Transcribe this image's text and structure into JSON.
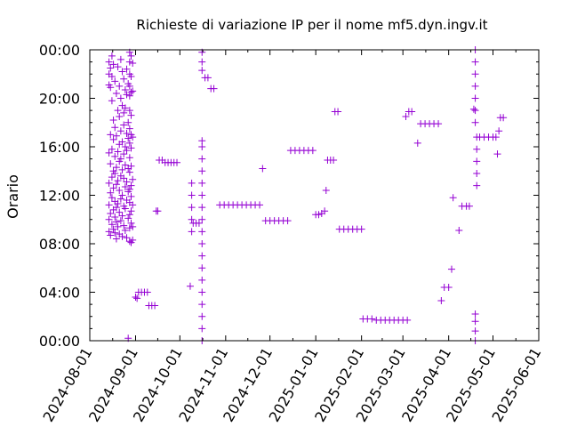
{
  "chart_data": {
    "type": "scatter",
    "title": "Richieste di variazione IP per il nome mf5.dyn.ingv.it",
    "xlabel": "",
    "ylabel": "Orario",
    "x_range": [
      "2024-08-01",
      "2025-06-01"
    ],
    "y_range_hours": [
      0,
      24
    ],
    "x_ticks": [
      "2024-08-01",
      "2024-09-01",
      "2024-10-01",
      "2024-11-01",
      "2024-12-01",
      "2025-01-01",
      "2025-02-01",
      "2025-03-01",
      "2025-04-01",
      "2025-05-01",
      "2025-06-01"
    ],
    "y_ticks": [
      "00:00",
      "04:00",
      "08:00",
      "12:00",
      "16:00",
      "20:00",
      "00:00"
    ],
    "y_tick_hours": [
      0,
      4,
      8,
      12,
      16,
      20,
      24
    ],
    "marker": "plus",
    "color": "#9400d3",
    "grid": false,
    "legend": "none",
    "points": [
      [
        "2024-08-14",
        23.0
      ],
      [
        "2024-08-14",
        22.0
      ],
      [
        "2024-08-14",
        21.1
      ],
      [
        "2024-08-14",
        15.5
      ],
      [
        "2024-08-14",
        13.0
      ],
      [
        "2024-08-14",
        11.2
      ],
      [
        "2024-08-14",
        10.0
      ],
      [
        "2024-08-14",
        9.0
      ],
      [
        "2024-08-15",
        22.5
      ],
      [
        "2024-08-15",
        20.9
      ],
      [
        "2024-08-15",
        17.0
      ],
      [
        "2024-08-15",
        14.6
      ],
      [
        "2024-08-15",
        12.2
      ],
      [
        "2024-08-15",
        10.5
      ],
      [
        "2024-08-15",
        8.7
      ],
      [
        "2024-08-16",
        21.8
      ],
      [
        "2024-08-16",
        19.8
      ],
      [
        "2024-08-16",
        15.8
      ],
      [
        "2024-08-16",
        13.5
      ],
      [
        "2024-08-16",
        11.8
      ],
      [
        "2024-08-16",
        9.6
      ],
      [
        "2024-08-16",
        23.5
      ],
      [
        "2024-08-17",
        22.8
      ],
      [
        "2024-08-17",
        18.2
      ],
      [
        "2024-08-17",
        16.6
      ],
      [
        "2024-08-17",
        14.0
      ],
      [
        "2024-08-17",
        12.6
      ],
      [
        "2024-08-17",
        10.8
      ],
      [
        "2024-08-17",
        9.2
      ],
      [
        "2024-08-18",
        21.4
      ],
      [
        "2024-08-18",
        17.6
      ],
      [
        "2024-08-18",
        15.2
      ],
      [
        "2024-08-18",
        13.8
      ],
      [
        "2024-08-18",
        11.5
      ],
      [
        "2024-08-18",
        10.2
      ],
      [
        "2024-08-18",
        8.9
      ],
      [
        "2024-08-19",
        20.4
      ],
      [
        "2024-08-19",
        16.9
      ],
      [
        "2024-08-19",
        14.3
      ],
      [
        "2024-08-19",
        12.9
      ],
      [
        "2024-08-19",
        11.0
      ],
      [
        "2024-08-19",
        9.8
      ],
      [
        "2024-08-19",
        8.4
      ],
      [
        "2024-08-20",
        22.6
      ],
      [
        "2024-08-20",
        19.0
      ],
      [
        "2024-08-20",
        15.6
      ],
      [
        "2024-08-20",
        13.2
      ],
      [
        "2024-08-20",
        11.3
      ],
      [
        "2024-08-20",
        9.4
      ],
      [
        "2024-08-21",
        21.0
      ],
      [
        "2024-08-21",
        18.5
      ],
      [
        "2024-08-21",
        16.2
      ],
      [
        "2024-08-21",
        14.8
      ],
      [
        "2024-08-21",
        12.4
      ],
      [
        "2024-08-21",
        10.6
      ],
      [
        "2024-08-21",
        8.8
      ],
      [
        "2024-08-22",
        23.2
      ],
      [
        "2024-08-22",
        20.0
      ],
      [
        "2024-08-22",
        17.3
      ],
      [
        "2024-08-22",
        15.0
      ],
      [
        "2024-08-22",
        13.6
      ],
      [
        "2024-08-22",
        11.7
      ],
      [
        "2024-08-22",
        9.9
      ],
      [
        "2024-08-23",
        22.2
      ],
      [
        "2024-08-23",
        19.4
      ],
      [
        "2024-08-23",
        16.4
      ],
      [
        "2024-08-23",
        14.1
      ],
      [
        "2024-08-23",
        12.0
      ],
      [
        "2024-08-23",
        10.3
      ],
      [
        "2024-08-23",
        8.6
      ],
      [
        "2024-08-24",
        21.6
      ],
      [
        "2024-08-24",
        18.8
      ],
      [
        "2024-08-24",
        17.8
      ],
      [
        "2024-08-24",
        15.4
      ],
      [
        "2024-08-24",
        13.4
      ],
      [
        "2024-08-24",
        11.1
      ],
      [
        "2024-08-24",
        9.5
      ],
      [
        "2024-08-25",
        20.7
      ],
      [
        "2024-08-25",
        19.2
      ],
      [
        "2024-08-25",
        16.0
      ],
      [
        "2024-08-25",
        14.5
      ],
      [
        "2024-08-25",
        12.7
      ],
      [
        "2024-08-25",
        10.9
      ],
      [
        "2024-08-25",
        9.1
      ],
      [
        "2024-08-26",
        22.4
      ],
      [
        "2024-08-26",
        20.3
      ],
      [
        "2024-08-26",
        17.1
      ],
      [
        "2024-08-26",
        15.7
      ],
      [
        "2024-08-26",
        13.1
      ],
      [
        "2024-08-26",
        11.6
      ],
      [
        "2024-08-26",
        8.5
      ],
      [
        "2024-08-27",
        21.2
      ],
      [
        "2024-08-27",
        18.0
      ],
      [
        "2024-08-27",
        16.7
      ],
      [
        "2024-08-27",
        14.2
      ],
      [
        "2024-08-27",
        12.3
      ],
      [
        "2024-08-27",
        10.1
      ],
      [
        "2024-08-27",
        0.2
      ],
      [
        "2024-08-28",
        23.8
      ],
      [
        "2024-08-28",
        23.0
      ],
      [
        "2024-08-28",
        22.0
      ],
      [
        "2024-08-28",
        21.0
      ],
      [
        "2024-08-28",
        20.2
      ],
      [
        "2024-08-28",
        19.0
      ],
      [
        "2024-08-28",
        17.5
      ],
      [
        "2024-08-28",
        16.3
      ],
      [
        "2024-08-28",
        15.1
      ],
      [
        "2024-08-28",
        13.9
      ],
      [
        "2024-08-28",
        12.5
      ],
      [
        "2024-08-28",
        11.4
      ],
      [
        "2024-08-28",
        10.4
      ],
      [
        "2024-08-28",
        9.3
      ],
      [
        "2024-08-28",
        8.2
      ],
      [
        "2024-08-29",
        23.5
      ],
      [
        "2024-08-29",
        21.8
      ],
      [
        "2024-08-29",
        20.5
      ],
      [
        "2024-08-29",
        18.6
      ],
      [
        "2024-08-29",
        17.0
      ],
      [
        "2024-08-29",
        15.9
      ],
      [
        "2024-08-29",
        14.4
      ],
      [
        "2024-08-29",
        12.8
      ],
      [
        "2024-08-29",
        11.9
      ],
      [
        "2024-08-29",
        10.7
      ],
      [
        "2024-08-29",
        9.7
      ],
      [
        "2024-08-29",
        8.1
      ],
      [
        "2024-08-30",
        22.9
      ],
      [
        "2024-08-30",
        20.6
      ],
      [
        "2024-08-30",
        16.8
      ],
      [
        "2024-08-30",
        13.3
      ],
      [
        "2024-08-30",
        11.2
      ],
      [
        "2024-08-30",
        9.4
      ],
      [
        "2024-08-30",
        8.3
      ],
      [
        "2024-09-01",
        3.6
      ],
      [
        "2024-09-02",
        3.5
      ],
      [
        "2024-09-03",
        4.0
      ],
      [
        "2024-09-05",
        4.0
      ],
      [
        "2024-09-07",
        4.0
      ],
      [
        "2024-09-09",
        4.0
      ],
      [
        "2024-09-10",
        2.9
      ],
      [
        "2024-09-12",
        2.9
      ],
      [
        "2024-09-14",
        2.9
      ],
      [
        "2024-09-15",
        10.7
      ],
      [
        "2024-09-16",
        10.7
      ],
      [
        "2024-09-17",
        14.9
      ],
      [
        "2024-09-19",
        14.9
      ],
      [
        "2024-09-21",
        14.7
      ],
      [
        "2024-09-23",
        14.7
      ],
      [
        "2024-09-25",
        14.7
      ],
      [
        "2024-09-27",
        14.7
      ],
      [
        "2024-09-29",
        14.7
      ],
      [
        "2024-10-08",
        4.5
      ],
      [
        "2024-10-09",
        9.0
      ],
      [
        "2024-10-09",
        10.0
      ],
      [
        "2024-10-09",
        11.0
      ],
      [
        "2024-10-09",
        12.0
      ],
      [
        "2024-10-09",
        13.0
      ],
      [
        "2024-10-10",
        9.7
      ],
      [
        "2024-10-12",
        9.7
      ],
      [
        "2024-10-14",
        9.7
      ],
      [
        "2024-10-16",
        0.0
      ],
      [
        "2024-10-16",
        1.0
      ],
      [
        "2024-10-16",
        2.0
      ],
      [
        "2024-10-16",
        3.0
      ],
      [
        "2024-10-16",
        4.0
      ],
      [
        "2024-10-16",
        5.0
      ],
      [
        "2024-10-16",
        6.0
      ],
      [
        "2024-10-16",
        7.0
      ],
      [
        "2024-10-16",
        8.0
      ],
      [
        "2024-10-16",
        9.0
      ],
      [
        "2024-10-16",
        10.0
      ],
      [
        "2024-10-16",
        11.0
      ],
      [
        "2024-10-16",
        12.0
      ],
      [
        "2024-10-16",
        13.0
      ],
      [
        "2024-10-16",
        14.0
      ],
      [
        "2024-10-16",
        15.0
      ],
      [
        "2024-10-16",
        16.0
      ],
      [
        "2024-10-16",
        16.5
      ],
      [
        "2024-10-16",
        22.3
      ],
      [
        "2024-10-16",
        23.0
      ],
      [
        "2024-10-16",
        23.8
      ],
      [
        "2024-10-18",
        21.7
      ],
      [
        "2024-10-20",
        21.7
      ],
      [
        "2024-10-22",
        20.8
      ],
      [
        "2024-10-24",
        20.8
      ],
      [
        "2024-10-28",
        11.2
      ],
      [
        "2024-10-31",
        11.2
      ],
      [
        "2024-11-03",
        11.2
      ],
      [
        "2024-11-06",
        11.2
      ],
      [
        "2024-11-09",
        11.2
      ],
      [
        "2024-11-12",
        11.2
      ],
      [
        "2024-11-15",
        11.2
      ],
      [
        "2024-11-18",
        11.2
      ],
      [
        "2024-11-21",
        11.2
      ],
      [
        "2024-11-24",
        11.2
      ],
      [
        "2024-11-26",
        14.2
      ],
      [
        "2024-11-28",
        9.9
      ],
      [
        "2024-12-01",
        9.9
      ],
      [
        "2024-12-04",
        9.9
      ],
      [
        "2024-12-07",
        9.9
      ],
      [
        "2024-12-10",
        9.9
      ],
      [
        "2024-12-13",
        9.9
      ],
      [
        "2024-12-15",
        15.7
      ],
      [
        "2024-12-18",
        15.7
      ],
      [
        "2024-12-21",
        15.7
      ],
      [
        "2024-12-24",
        15.7
      ],
      [
        "2024-12-27",
        15.7
      ],
      [
        "2024-12-30",
        15.7
      ],
      [
        "2025-01-01",
        10.4
      ],
      [
        "2025-01-03",
        10.4
      ],
      [
        "2025-01-05",
        10.5
      ],
      [
        "2025-01-07",
        10.7
      ],
      [
        "2025-01-08",
        12.4
      ],
      [
        "2025-01-09",
        14.9
      ],
      [
        "2025-01-11",
        14.9
      ],
      [
        "2025-01-13",
        14.9
      ],
      [
        "2025-01-14",
        18.9
      ],
      [
        "2025-01-16",
        18.9
      ],
      [
        "2025-01-17",
        9.2
      ],
      [
        "2025-01-20",
        9.2
      ],
      [
        "2025-01-23",
        9.2
      ],
      [
        "2025-01-26",
        9.2
      ],
      [
        "2025-01-29",
        9.2
      ],
      [
        "2025-02-01",
        9.2
      ],
      [
        "2025-02-02",
        1.8
      ],
      [
        "2025-02-05",
        1.8
      ],
      [
        "2025-02-08",
        1.8
      ],
      [
        "2025-02-11",
        1.7
      ],
      [
        "2025-02-14",
        1.7
      ],
      [
        "2025-02-17",
        1.7
      ],
      [
        "2025-02-20",
        1.7
      ],
      [
        "2025-02-23",
        1.7
      ],
      [
        "2025-02-26",
        1.7
      ],
      [
        "2025-03-01",
        1.7
      ],
      [
        "2025-03-04",
        1.7
      ],
      [
        "2025-03-03",
        18.5
      ],
      [
        "2025-03-05",
        18.9
      ],
      [
        "2025-03-07",
        18.9
      ],
      [
        "2025-03-11",
        16.3
      ],
      [
        "2025-03-13",
        17.9
      ],
      [
        "2025-03-16",
        17.9
      ],
      [
        "2025-03-19",
        17.9
      ],
      [
        "2025-03-22",
        17.9
      ],
      [
        "2025-03-25",
        17.9
      ],
      [
        "2025-03-27",
        3.3
      ],
      [
        "2025-03-29",
        4.4
      ],
      [
        "2025-04-01",
        4.4
      ],
      [
        "2025-04-03",
        5.9
      ],
      [
        "2025-04-04",
        11.8
      ],
      [
        "2025-04-08",
        9.1
      ],
      [
        "2025-04-10",
        11.1
      ],
      [
        "2025-04-13",
        11.1
      ],
      [
        "2025-04-15",
        11.1
      ],
      [
        "2025-04-18",
        19.1
      ],
      [
        "2025-04-19",
        0.0
      ],
      [
        "2025-04-19",
        0.8
      ],
      [
        "2025-04-19",
        1.6
      ],
      [
        "2025-04-19",
        2.2
      ],
      [
        "2025-04-19",
        18.0
      ],
      [
        "2025-04-19",
        19.0
      ],
      [
        "2025-04-19",
        20.0
      ],
      [
        "2025-04-19",
        21.0
      ],
      [
        "2025-04-19",
        22.0
      ],
      [
        "2025-04-19",
        23.0
      ],
      [
        "2025-04-19",
        24.0
      ],
      [
        "2025-04-20",
        12.8
      ],
      [
        "2025-04-20",
        13.8
      ],
      [
        "2025-04-20",
        14.8
      ],
      [
        "2025-04-20",
        15.8
      ],
      [
        "2025-04-20",
        16.8
      ],
      [
        "2025-04-22",
        16.8
      ],
      [
        "2025-04-25",
        16.8
      ],
      [
        "2025-04-28",
        16.8
      ],
      [
        "2025-05-01",
        16.8
      ],
      [
        "2025-05-03",
        16.8
      ],
      [
        "2025-05-05",
        17.3
      ],
      [
        "2025-05-06",
        18.4
      ],
      [
        "2025-05-08",
        18.4
      ],
      [
        "2025-05-04",
        15.4
      ]
    ]
  }
}
